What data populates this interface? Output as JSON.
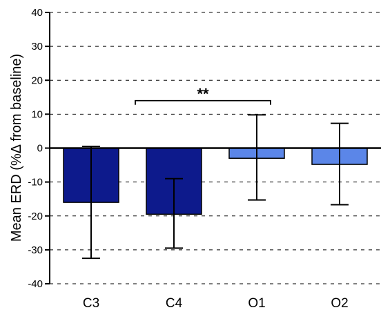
{
  "chart_data": {
    "type": "bar",
    "title": "",
    "xlabel": "",
    "ylabel": "Mean ERD (%Δ from baseline)",
    "categories": [
      "C3",
      "C4",
      "O1",
      "O2"
    ],
    "values": [
      -16.0,
      -19.5,
      -3.0,
      -4.8
    ],
    "error_upper": [
      0.5,
      -9.0,
      9.8,
      7.3
    ],
    "error_lower": [
      -32.5,
      -29.5,
      -15.3,
      -16.7
    ],
    "bar_colors": [
      "#0d1a8c",
      "#0d1a8c",
      "#5b86e8",
      "#5b86e8"
    ],
    "ylim": [
      -40,
      40
    ],
    "yticks": [
      -40,
      -30,
      -20,
      -10,
      0,
      10,
      20,
      30,
      40
    ],
    "ytick_labels": [
      "-40",
      "-30",
      "-20",
      "-10",
      "0",
      "10",
      "20",
      "30",
      "40"
    ],
    "grid": "horizontal-dashed",
    "significance": {
      "from": "C4",
      "to": "O1",
      "y": 14,
      "label": "**"
    }
  }
}
